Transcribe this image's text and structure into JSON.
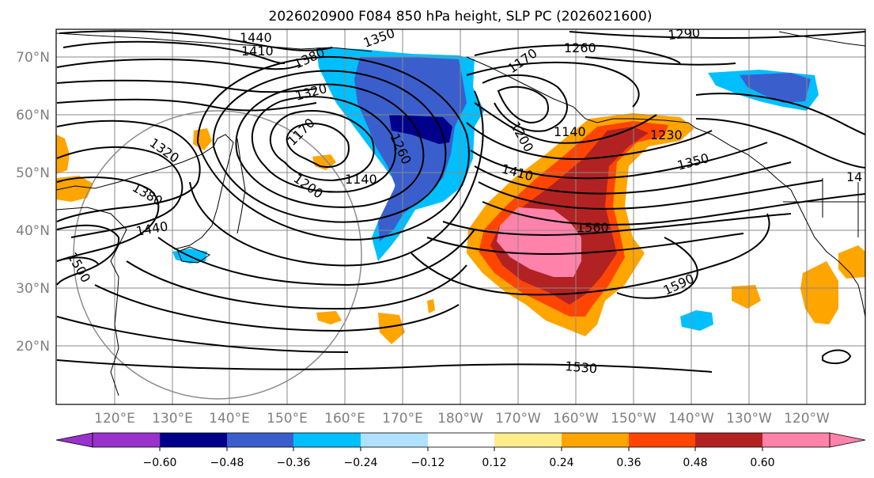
{
  "title": "2026020900 F084 850 hPa height, SLP PC (2026021600)",
  "lat_labels": [
    "70°N",
    "60°N",
    "50°N",
    "40°N",
    "30°N",
    "20°N"
  ],
  "lon_labels": [
    "120°E",
    "130°E",
    "140°E",
    "150°E",
    "160°E",
    "170°E",
    "180°W",
    "170°W",
    "160°W",
    "150°W",
    "140°W",
    "130°W",
    "120°W"
  ],
  "contour_labels": [
    "1440",
    "1410",
    "1350",
    "1380",
    "1320",
    "1290",
    "1260",
    "1170",
    "1200",
    "1140",
    "1230",
    "1410",
    "1350",
    "1260",
    "1170",
    "1200",
    "1140",
    "1320",
    "1380",
    "1440",
    "1500",
    "1560",
    "1590",
    "1530",
    "14"
  ],
  "colorbar": {
    "ticks": [
      "−0.60",
      "−0.48",
      "−0.36",
      "−0.24",
      "−0.12",
      "0.12",
      "0.24",
      "0.36",
      "0.48",
      "0.60"
    ],
    "colors": [
      "#9932cc",
      "#00008b",
      "#3a5fcd",
      "#00bfff",
      "#b0e2ff",
      "#ffffff",
      "#ffec8b",
      "#ffa500",
      "#ff4500",
      "#b22222",
      "#ff82ab"
    ]
  },
  "palette": {
    "blue_dark": "#00008b",
    "blue_mid": "#3a5fcd",
    "blue_light": "#00bfff",
    "orange": "#ffa500",
    "red_orange": "#ff4500",
    "dark_red": "#b22222",
    "pink": "#ff82ab"
  }
}
